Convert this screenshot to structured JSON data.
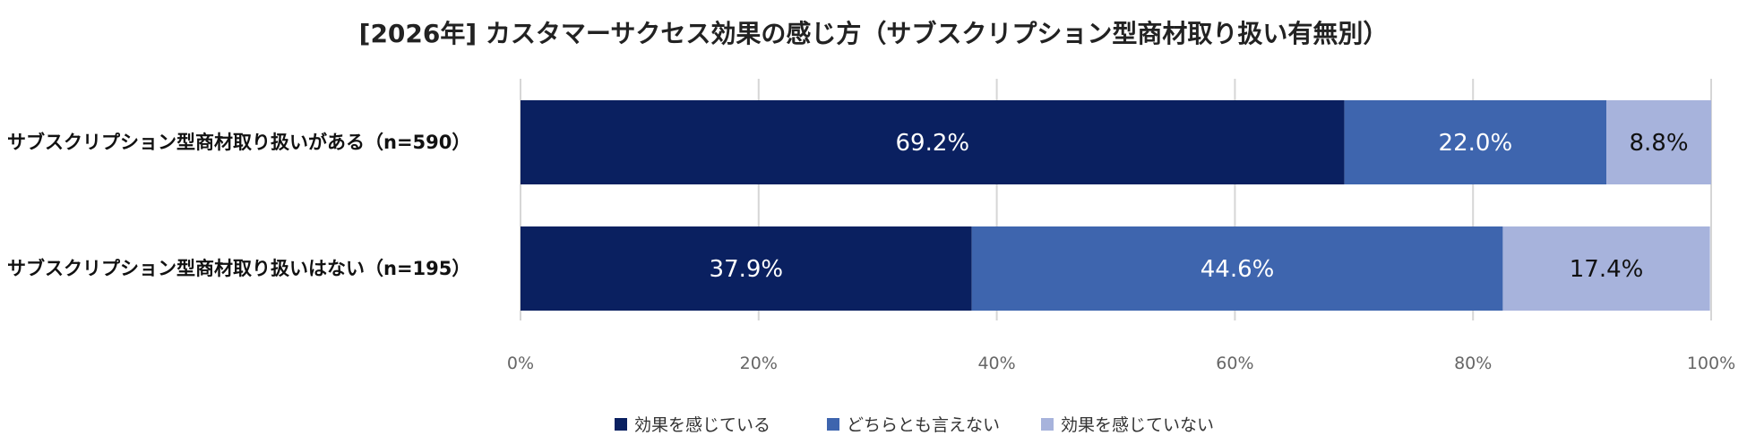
{
  "chart_data": {
    "type": "bar",
    "orientation": "horizontal",
    "stacked": true,
    "title": "[2026年] カスタマーサクセス効果の感じ方（サブスクリプション型商材取り扱い有無別）",
    "categories": [
      "サブスクリプション型商材取り扱いがある（n=590）",
      "サブスクリプション型商材取り扱いはない（n=195）"
    ],
    "series": [
      {
        "name": "効果を感じている",
        "color": "#0a2060",
        "values": [
          69.2,
          37.9
        ],
        "labels": [
          "69.2%",
          "37.9%"
        ],
        "label_color": "#ffffff"
      },
      {
        "name": "どちらとも言えない",
        "color": "#3e65ae",
        "values": [
          22.0,
          44.6
        ],
        "labels": [
          "22.0%",
          "44.6%"
        ],
        "label_color": "#ffffff"
      },
      {
        "name": "効果を感じていない",
        "color": "#a7b3dc",
        "values": [
          8.8,
          17.4
        ],
        "labels": [
          "8.8%",
          "17.4%"
        ],
        "label_color": "#111111"
      }
    ],
    "xlim": [
      0,
      100
    ],
    "xticks": [
      0,
      20,
      40,
      60,
      80,
      100
    ],
    "xtick_labels": [
      "0%",
      "20%",
      "40%",
      "60%",
      "80%",
      "100%"
    ],
    "grid": true,
    "legend_position": "bottom"
  }
}
